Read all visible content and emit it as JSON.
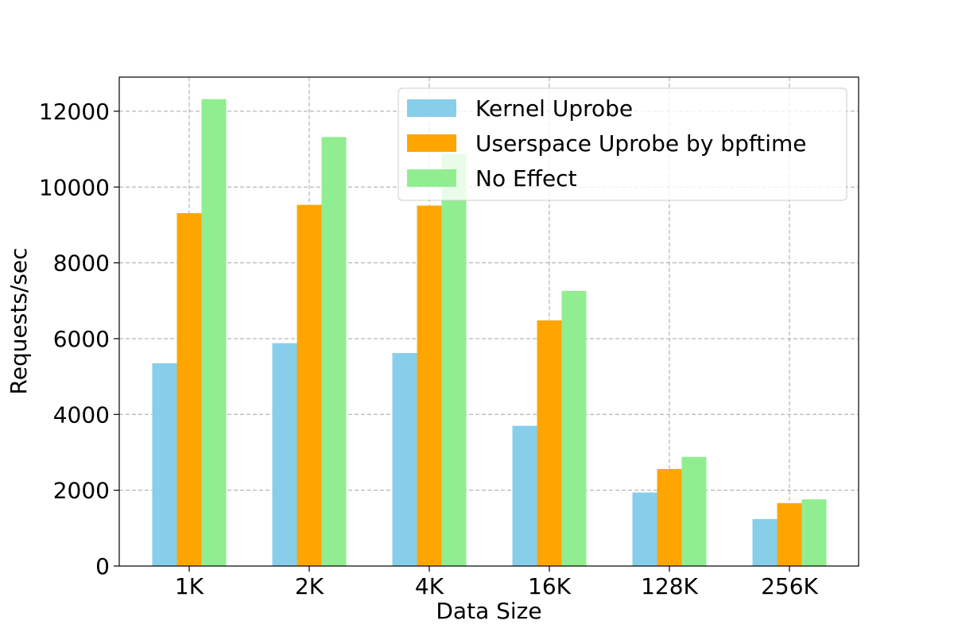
{
  "chart_data": {
    "type": "bar",
    "categories": [
      "1K",
      "2K",
      "4K",
      "16K",
      "128K",
      "256K"
    ],
    "series": [
      {
        "name": "Kernel Uprobe",
        "color": "#87ceeb",
        "values": [
          5350,
          5880,
          5620,
          3700,
          1940,
          1240
        ]
      },
      {
        "name": "Userspace Uprobe by bpftime",
        "color": "#ffa500",
        "values": [
          9310,
          9530,
          9510,
          6480,
          2560,
          1660
        ]
      },
      {
        "name": "No Effect",
        "color": "#90ee90",
        "values": [
          12320,
          11320,
          10880,
          7260,
          2880,
          1760
        ]
      }
    ],
    "xlabel": "Data Size",
    "ylabel": "Requests/sec",
    "ylim": [
      0,
      12900
    ],
    "yticks": [
      0,
      2000,
      4000,
      6000,
      8000,
      10000,
      12000
    ],
    "grid": true,
    "legend_position": "top-right"
  }
}
